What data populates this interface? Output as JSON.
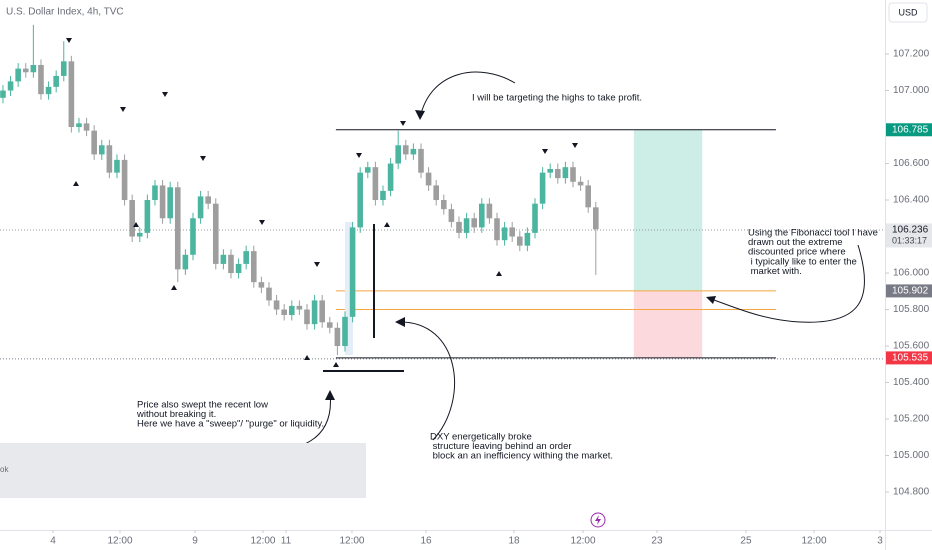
{
  "chart_data": {
    "type": "candlestick",
    "title": "U.S. Dollar Index, 4h, TVC",
    "currency": "USD",
    "up_color": "#4cb5a0",
    "down_color": "#9e9e9e",
    "x": [
      0,
      1,
      2,
      3,
      4,
      5,
      6,
      7,
      8,
      9,
      10,
      11,
      12,
      13,
      14,
      15,
      16,
      17,
      18,
      19,
      20,
      21,
      22,
      23,
      24,
      25,
      26,
      27,
      28,
      29,
      30,
      31,
      32,
      33,
      34,
      35,
      36,
      37,
      38,
      39,
      40,
      41,
      42,
      43,
      44,
      45,
      46,
      47,
      48,
      49,
      50,
      51,
      52,
      53,
      54,
      55,
      56,
      57,
      58,
      59,
      60,
      61,
      62,
      63,
      64,
      65,
      66,
      67,
      68,
      69,
      70,
      71,
      72,
      73,
      74,
      75,
      76,
      77,
      78
    ],
    "open": [
      106.96,
      107.0,
      107.05,
      107.12,
      107.1,
      107.14,
      106.98,
      107.02,
      107.08,
      107.16,
      106.8,
      106.82,
      106.78,
      106.65,
      106.7,
      106.55,
      106.62,
      106.4,
      106.2,
      106.22,
      106.4,
      106.48,
      106.3,
      106.47,
      106.02,
      106.1,
      106.3,
      106.42,
      106.38,
      106.05,
      106.1,
      106.0,
      106.05,
      106.12,
      105.95,
      105.92,
      105.85,
      105.8,
      105.77,
      105.82,
      105.8,
      105.72,
      105.85,
      105.73,
      105.7,
      105.6,
      105.76,
      106.25,
      106.55,
      106.58,
      106.4,
      106.45,
      106.6,
      106.7,
      106.65,
      106.68,
      106.55,
      106.48,
      106.4,
      106.35,
      106.28,
      106.22,
      106.3,
      106.25,
      106.38,
      106.3,
      106.18,
      106.25,
      106.2,
      106.15,
      106.22,
      106.38,
      106.55,
      106.57,
      106.52,
      106.58,
      106.5,
      106.48,
      106.36
    ],
    "high": [
      107.03,
      107.08,
      107.15,
      107.15,
      107.36,
      107.17,
      107.05,
      107.11,
      107.27,
      107.19,
      106.85,
      106.85,
      106.81,
      106.73,
      106.73,
      106.65,
      106.65,
      106.43,
      106.25,
      106.43,
      106.51,
      106.51,
      106.5,
      106.5,
      106.13,
      106.33,
      106.45,
      106.45,
      106.41,
      106.13,
      106.13,
      106.08,
      106.15,
      106.15,
      105.98,
      105.95,
      105.88,
      105.83,
      105.85,
      105.85,
      105.83,
      105.88,
      105.88,
      105.76,
      105.73,
      105.79,
      106.28,
      106.58,
      106.61,
      106.61,
      106.48,
      106.63,
      106.78,
      106.73,
      106.71,
      106.71,
      106.58,
      106.51,
      106.43,
      106.38,
      106.31,
      106.33,
      106.33,
      106.41,
      106.41,
      106.33,
      106.28,
      106.28,
      106.23,
      106.25,
      106.41,
      106.58,
      106.6,
      106.6,
      106.61,
      106.61,
      106.53,
      106.51,
      106.39
    ],
    "low": [
      106.93,
      106.97,
      107.02,
      107.07,
      107.07,
      106.95,
      106.95,
      106.99,
      107.05,
      106.77,
      106.77,
      106.75,
      106.62,
      106.62,
      106.52,
      106.52,
      106.37,
      106.17,
      106.17,
      106.19,
      106.37,
      106.27,
      106.27,
      105.95,
      105.99,
      106.07,
      106.27,
      106.35,
      106.02,
      106.02,
      105.97,
      105.97,
      106.02,
      105.92,
      105.89,
      105.82,
      105.77,
      105.74,
      105.74,
      105.77,
      105.69,
      105.69,
      105.7,
      105.67,
      105.55,
      105.57,
      105.73,
      106.22,
      106.52,
      106.37,
      106.37,
      106.42,
      106.57,
      106.62,
      106.62,
      106.52,
      106.45,
      106.37,
      106.32,
      106.25,
      106.19,
      106.19,
      106.22,
      106.22,
      106.27,
      106.15,
      106.15,
      106.17,
      106.12,
      106.12,
      106.19,
      106.35,
      106.52,
      106.49,
      106.49,
      106.47,
      106.45,
      106.33,
      105.99
    ],
    "close": [
      107.0,
      107.05,
      107.12,
      107.1,
      107.14,
      106.98,
      107.02,
      107.08,
      107.16,
      106.8,
      106.82,
      106.78,
      106.65,
      106.7,
      106.55,
      106.62,
      106.4,
      106.2,
      106.22,
      106.4,
      106.48,
      106.3,
      106.47,
      106.02,
      106.1,
      106.3,
      106.42,
      106.38,
      106.05,
      106.1,
      106.0,
      106.05,
      106.12,
      105.95,
      105.92,
      105.85,
      105.8,
      105.77,
      105.82,
      105.8,
      105.72,
      105.85,
      105.73,
      105.7,
      105.6,
      105.76,
      106.25,
      106.55,
      106.58,
      106.4,
      106.45,
      106.6,
      106.7,
      106.65,
      106.68,
      106.55,
      106.48,
      106.4,
      106.35,
      106.28,
      106.22,
      106.3,
      106.25,
      106.38,
      106.3,
      106.18,
      106.25,
      106.2,
      106.15,
      106.22,
      106.38,
      106.55,
      106.57,
      106.52,
      106.58,
      106.5,
      106.48,
      106.36,
      106.24
    ],
    "xlim": [
      -0.39,
      116.05
    ],
    "ylim": [
      104.592,
      107.496
    ],
    "xticks": [
      {
        "value": 6.58,
        "label": "4"
      },
      {
        "value": 15.4,
        "label": "12:00"
      },
      {
        "value": 25.27,
        "label": "9"
      },
      {
        "value": 34.21,
        "label": "12:00"
      },
      {
        "value": 37.24,
        "label": "11"
      },
      {
        "value": 45.92,
        "label": "12:00"
      },
      {
        "value": 55.66,
        "label": "16"
      },
      {
        "value": 67.24,
        "label": "18"
      },
      {
        "value": 76.32,
        "label": "12:00"
      },
      {
        "value": 86.05,
        "label": "23"
      },
      {
        "value": 97.76,
        "label": "25"
      },
      {
        "value": 106.71,
        "label": "12:00"
      },
      {
        "value": 115.39,
        "label": "3"
      }
    ],
    "yticks": [
      {
        "value": 107.2,
        "label": "107.200"
      },
      {
        "value": 107.0,
        "label": "107.000"
      },
      {
        "value": 106.6,
        "label": "106.600"
      },
      {
        "value": 106.4,
        "label": "106.400"
      },
      {
        "value": 106.0,
        "label": "106.000"
      },
      {
        "value": 105.8,
        "label": "105.800"
      },
      {
        "value": 105.6,
        "label": "105.600"
      },
      {
        "value": 105.4,
        "label": "105.400"
      },
      {
        "value": 105.2,
        "label": "105.200"
      },
      {
        "value": 105.0,
        "label": "105.000"
      },
      {
        "value": 104.8,
        "label": "104.800"
      }
    ],
    "grid": false,
    "lines": [
      {
        "value": 106.785,
        "x": [
          43.8,
          101.7
        ],
        "color": "#131722"
      },
      {
        "value": 105.902,
        "x": [
          43.8,
          101.7
        ],
        "color": "#f5a742"
      },
      {
        "value": 105.8,
        "x": [
          43.8,
          101.7
        ],
        "color": "#f5a742"
      },
      {
        "value": 105.535,
        "x": [
          43.8,
          101.7
        ],
        "color": "#131722"
      }
    ],
    "position": {
      "x": [
        83,
        92
      ],
      "target": 106.785,
      "entry": 105.902,
      "stop": 105.535,
      "profit_color": "#cdeee6",
      "loss_color": "#fbd9dc"
    },
    "current_price": 106.236,
    "countdown": "01:33:17",
    "price_labels": [
      {
        "value": 106.785,
        "bg": "#089981"
      },
      {
        "value": 106.236,
        "bg": "#e6e7ea"
      },
      {
        "value": 105.902,
        "bg": "#787b86"
      },
      {
        "value": 105.535,
        "bg": "#f23645"
      }
    ],
    "annotations": [
      {
        "lines": [
          "I will be targeting the highs to take profit."
        ]
      },
      {
        "lines": [
          "Using the Fibonacci tool I have",
          "drawn out the extreme",
          "discounted price where",
          " i typically like to enter the",
          " market with."
        ]
      },
      {
        "lines": [
          "Price also swept the recent low",
          "without breaking it.",
          "Here we have a \"sweep\"/ \"purge\" or liquidity."
        ]
      },
      {
        "lines": [
          "DXY energetically broke",
          " structure leaving behind an order",
          " block an an inefficiency withing the market."
        ]
      }
    ],
    "panel_text": "ok"
  }
}
